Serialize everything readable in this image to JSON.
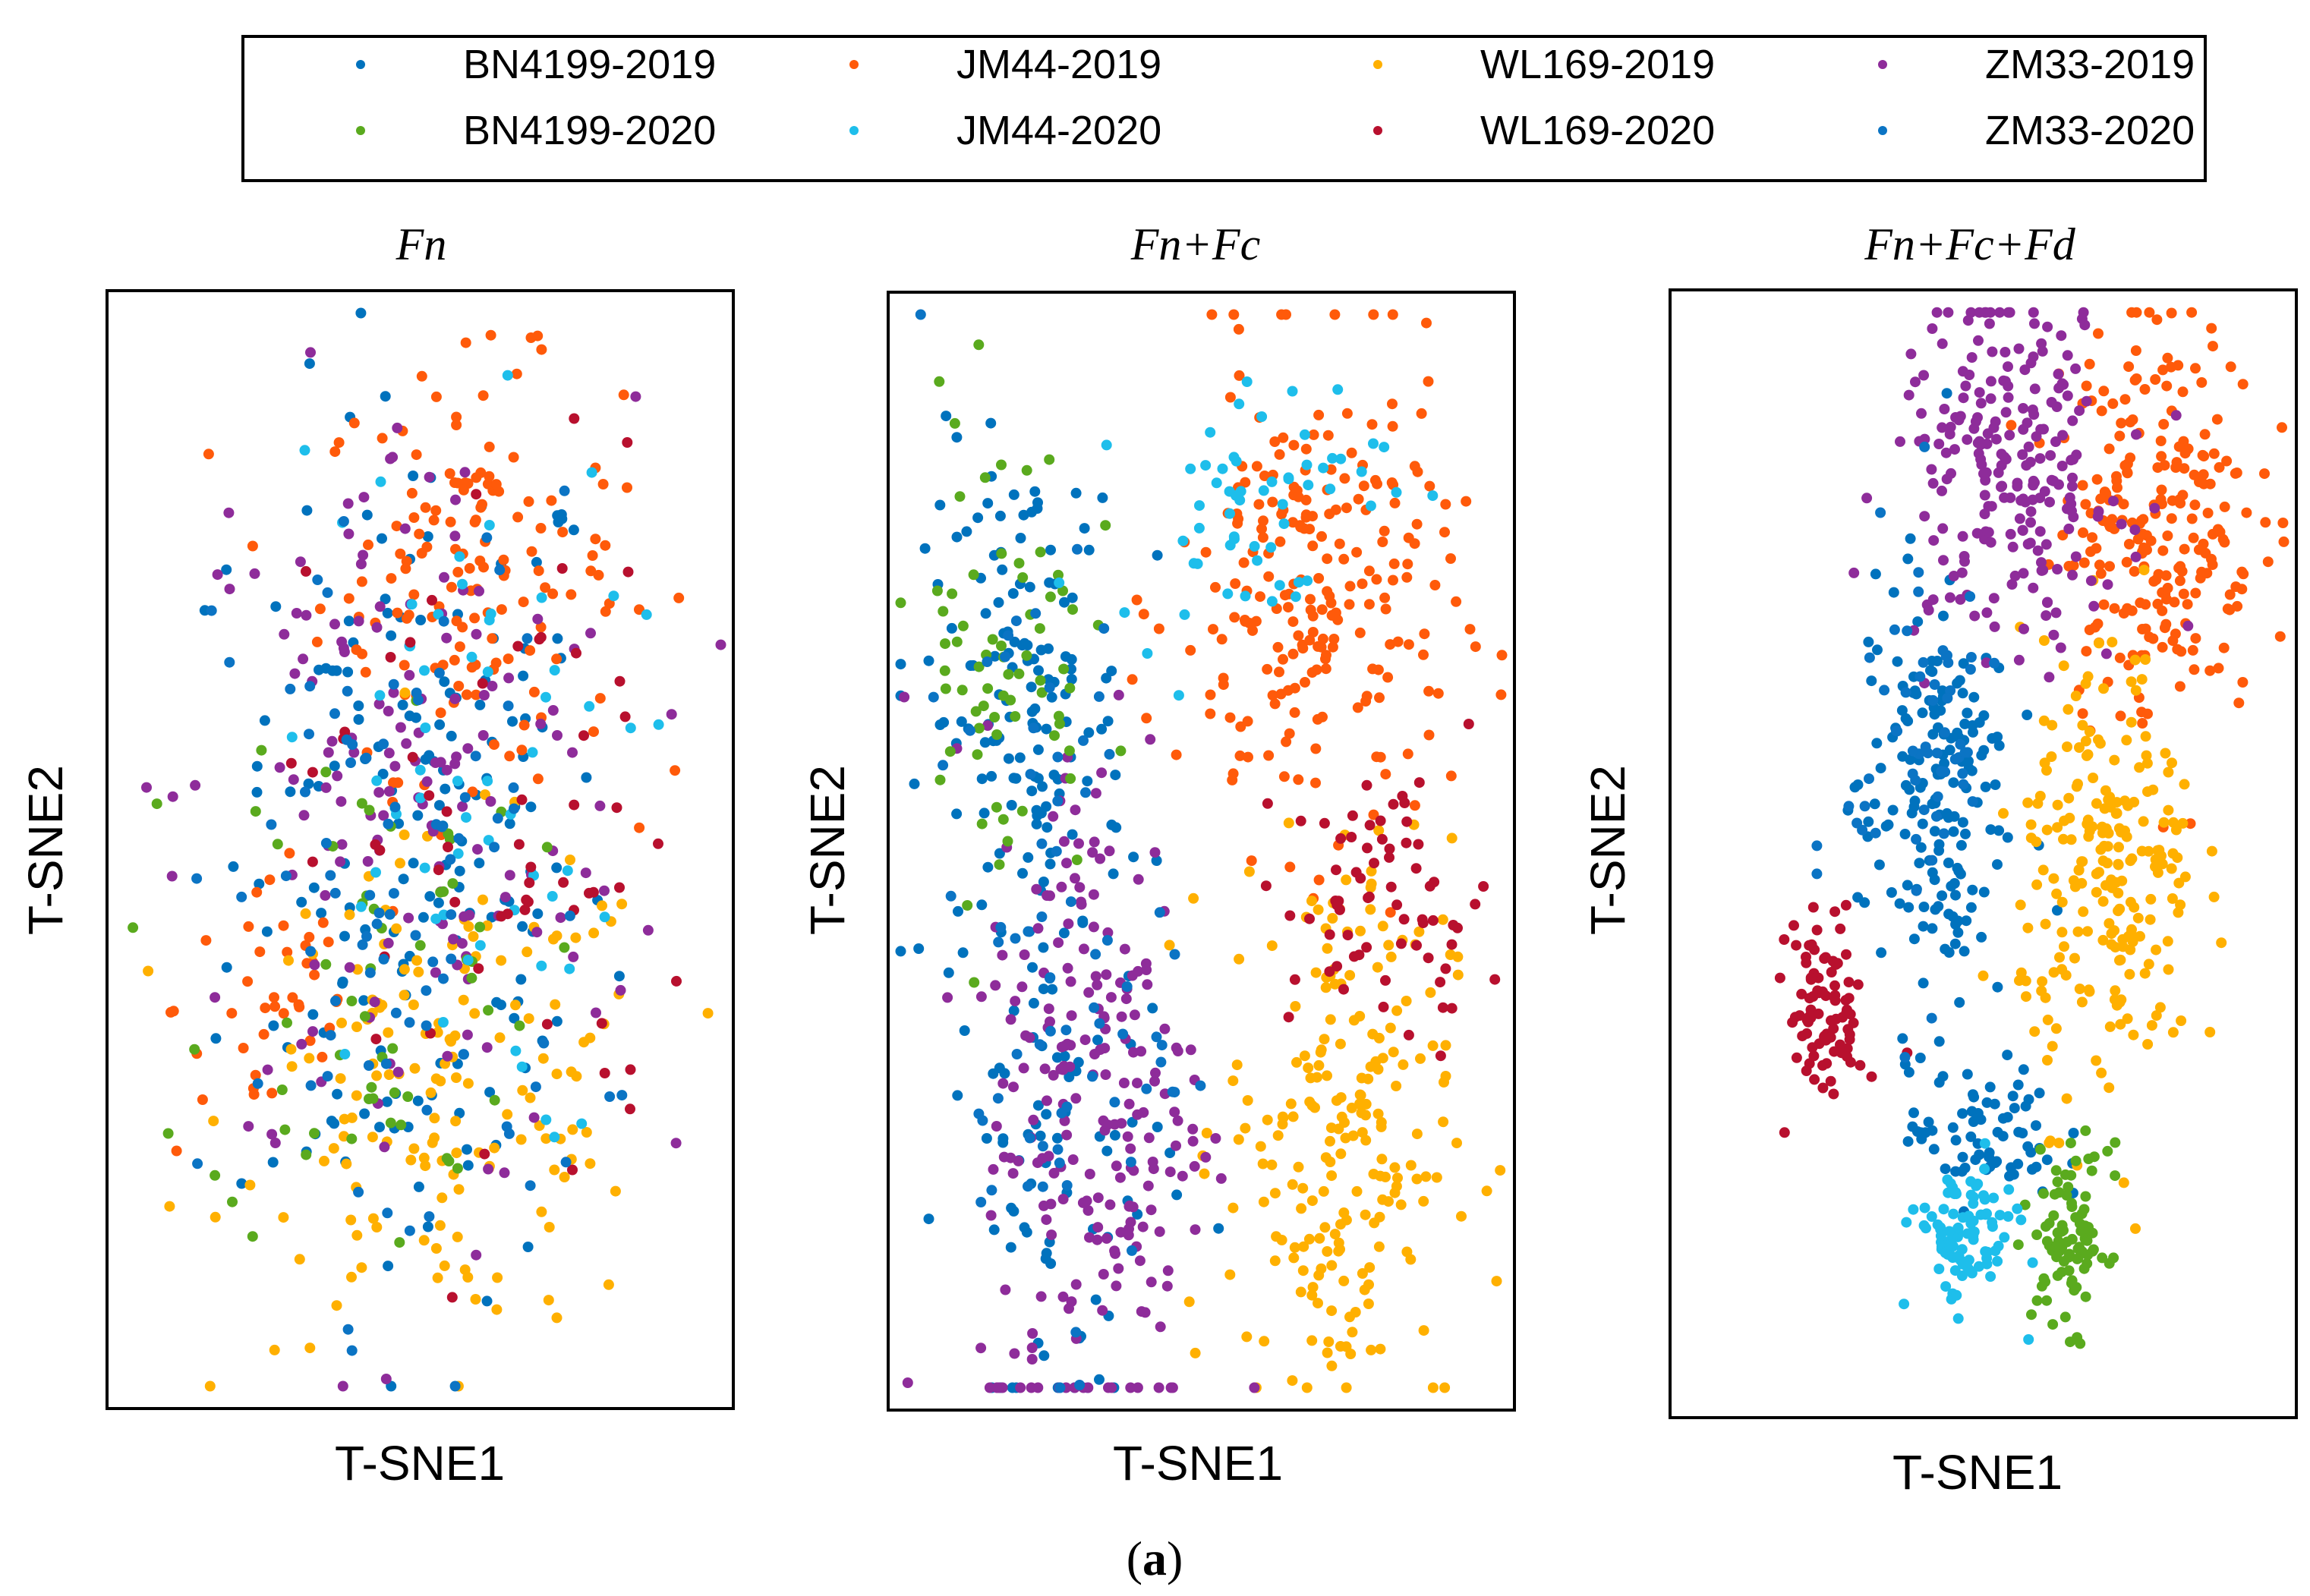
{
  "figure": {
    "caption_open": "(",
    "caption_letter": "a",
    "caption_close": ")"
  },
  "legend": {
    "entries": [
      {
        "label": "BN4199-2019",
        "color": "#0072BD"
      },
      {
        "label": "JM44-2019",
        "color": "#FF5A0A"
      },
      {
        "label": "WL169-2019",
        "color": "#FFB000"
      },
      {
        "label": "ZM33-2019",
        "color": "#8E2C9A"
      },
      {
        "label": "BN4199-2020",
        "color": "#5AAA1E"
      },
      {
        "label": "JM44-2020",
        "color": "#1EBEEB"
      },
      {
        "label": "WL169-2020",
        "color": "#B8102E"
      },
      {
        "label": "ZM33-2020",
        "color": "#0B74C4"
      }
    ]
  },
  "chart_data": [
    {
      "type": "scatter",
      "title": "Fn",
      "xlabel": "T-SNE1",
      "ylabel": "T-SNE2",
      "xlim": [
        0,
        100
      ],
      "ylim": [
        0,
        100
      ],
      "ticks": "none",
      "grid": false,
      "series": [
        {
          "name": "BN4199-2019",
          "clusters": [
            {
              "cx": 50,
              "cy": 50,
              "sx": 15,
              "sy": 20,
              "n": 170
            }
          ]
        },
        {
          "name": "JM44-2019",
          "clusters": [
            {
              "cx": 58,
              "cy": 75,
              "sx": 12,
              "sy": 9,
              "n": 150
            },
            {
              "cx": 27,
              "cy": 36,
              "sx": 8,
              "sy": 7,
              "n": 40
            }
          ]
        },
        {
          "name": "WL169-2019",
          "clusters": [
            {
              "cx": 55,
              "cy": 28,
              "sx": 17,
              "sy": 11,
              "n": 160
            }
          ]
        },
        {
          "name": "ZM33-2019",
          "clusters": [
            {
              "cx": 48,
              "cy": 54,
              "sx": 18,
              "sy": 18,
              "n": 160
            }
          ]
        },
        {
          "name": "BN4199-2020",
          "clusters": [
            {
              "cx": 42,
              "cy": 40,
              "sx": 13,
              "sy": 13,
              "n": 60
            }
          ]
        },
        {
          "name": "JM44-2020",
          "clusters": [
            {
              "cx": 55,
              "cy": 55,
              "sx": 14,
              "sy": 16,
              "n": 60
            }
          ]
        },
        {
          "name": "WL169-2020",
          "clusters": [
            {
              "cx": 62,
              "cy": 50,
              "sx": 15,
              "sy": 18,
              "n": 60
            }
          ]
        },
        {
          "name": "ZM33-2020",
          "clusters": [
            {
              "cx": 48,
              "cy": 45,
              "sx": 15,
              "sy": 18,
              "n": 90
            }
          ]
        }
      ]
    },
    {
      "type": "scatter",
      "title": "Fn+Fc",
      "xlabel": "T-SNE1",
      "ylabel": "T-SNE2",
      "xlim": [
        0,
        100
      ],
      "ylim": [
        0,
        100
      ],
      "ticks": "none",
      "grid": false,
      "series": [
        {
          "name": "BN4199-2019",
          "clusters": [
            {
              "cx": 22,
              "cy": 62,
              "sx": 8,
              "sy": 12,
              "n": 150
            },
            {
              "cx": 28,
              "cy": 20,
              "sx": 9,
              "sy": 12,
              "n": 70
            }
          ]
        },
        {
          "name": "JM44-2019",
          "clusters": [
            {
              "cx": 68,
              "cy": 72,
              "sx": 11,
              "sy": 11,
              "n": 230
            }
          ]
        },
        {
          "name": "WL169-2019",
          "clusters": [
            {
              "cx": 72,
              "cy": 25,
              "sx": 9,
              "sy": 13,
              "n": 220
            }
          ]
        },
        {
          "name": "ZM33-2019",
          "clusters": [
            {
              "cx": 33,
              "cy": 28,
              "sx": 9,
              "sy": 17,
              "n": 230
            }
          ]
        },
        {
          "name": "BN4199-2020",
          "clusters": [
            {
              "cx": 18,
              "cy": 68,
              "sx": 7,
              "sy": 11,
              "n": 70
            }
          ]
        },
        {
          "name": "JM44-2020",
          "clusters": [
            {
              "cx": 58,
              "cy": 82,
              "sx": 11,
              "sy": 6,
              "n": 60
            }
          ]
        },
        {
          "name": "WL169-2020",
          "clusters": [
            {
              "cx": 80,
              "cy": 45,
              "sx": 8,
              "sy": 6,
              "n": 70
            }
          ]
        },
        {
          "name": "ZM33-2020",
          "clusters": [
            {
              "cx": 25,
              "cy": 40,
              "sx": 10,
              "sy": 18,
              "n": 70
            }
          ]
        }
      ]
    },
    {
      "type": "scatter",
      "title": "Fn+Fc+Fd",
      "xlabel": "T-SNE1",
      "ylabel": "T-SNE2",
      "xlim": [
        0,
        100
      ],
      "ylim": [
        0,
        100
      ],
      "ticks": "none",
      "grid": false,
      "series": [
        {
          "name": "BN4199-2019",
          "clusters": [
            {
              "cx": 42,
              "cy": 55,
              "sx": 6,
              "sy": 10,
              "n": 170
            },
            {
              "cx": 50,
              "cy": 25,
              "sx": 6,
              "sy": 3,
              "n": 70
            }
          ]
        },
        {
          "name": "JM44-2019",
          "clusters": [
            {
              "cx": 78,
              "cy": 80,
              "sx": 8,
              "sy": 9,
              "n": 240
            }
          ]
        },
        {
          "name": "WL169-2019",
          "clusters": [
            {
              "cx": 70,
              "cy": 48,
              "sx": 7,
              "sy": 10,
              "n": 230
            }
          ]
        },
        {
          "name": "ZM33-2019",
          "clusters": [
            {
              "cx": 54,
              "cy": 84,
              "sx": 9,
              "sy": 8,
              "n": 230
            }
          ]
        },
        {
          "name": "BN4199-2020",
          "clusters": [
            {
              "cx": 64,
              "cy": 16,
              "sx": 3,
              "sy": 4,
              "n": 90
            }
          ]
        },
        {
          "name": "JM44-2020",
          "clusters": [
            {
              "cx": 47,
              "cy": 16,
              "sx": 4,
              "sy": 3,
              "n": 100
            }
          ]
        },
        {
          "name": "WL169-2020",
          "clusters": [
            {
              "cx": 25,
              "cy": 36,
              "sx": 3,
              "sy": 4,
              "n": 90
            }
          ]
        },
        {
          "name": "ZM33-2020",
          "clusters": [
            {
              "cx": 40,
              "cy": 60,
              "sx": 6,
              "sy": 10,
              "n": 60
            }
          ]
        }
      ]
    }
  ]
}
